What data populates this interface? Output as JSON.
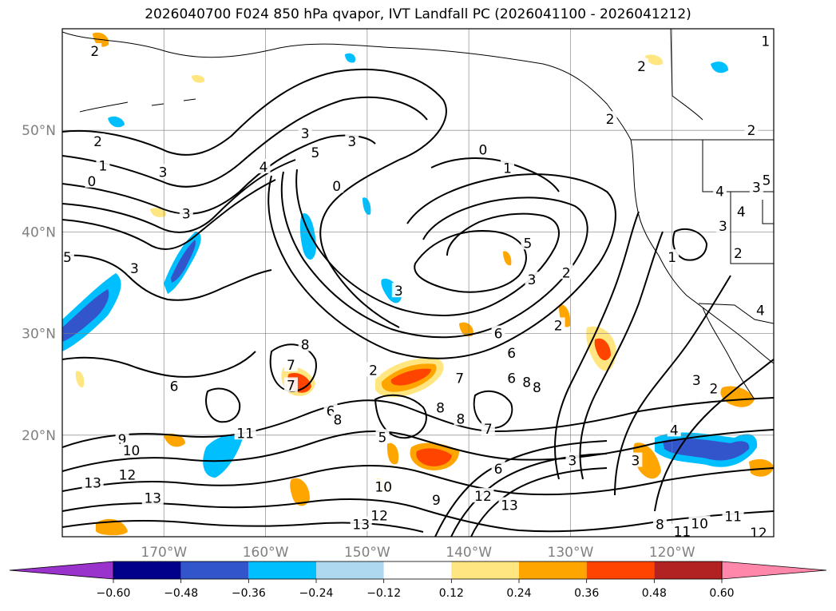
{
  "title": "2026040700 F024 850 hPa qvapor, IVT Landfall PC (2026041100 - 2026041212)",
  "map": {
    "lon_range": [
      -180,
      -110
    ],
    "lat_range": [
      10,
      60
    ],
    "lat_labels": [
      {
        "lat": 20,
        "text": "20°N"
      },
      {
        "lat": 30,
        "text": "30°N"
      },
      {
        "lat": 40,
        "text": "40°N"
      },
      {
        "lat": 50,
        "text": "50°N"
      }
    ],
    "lon_labels": [
      {
        "lon": -170,
        "text": "170°W"
      },
      {
        "lon": -160,
        "text": "160°W"
      },
      {
        "lon": -150,
        "text": "150°W"
      },
      {
        "lon": -140,
        "text": "140°W"
      },
      {
        "lon": -130,
        "text": "130°W"
      },
      {
        "lon": -120,
        "text": "120°W"
      }
    ],
    "grid_lons": [
      -170,
      -160,
      -150,
      -140,
      -130,
      -120
    ],
    "grid_lats": [
      20,
      30,
      40,
      50
    ],
    "contour_labels": [
      {
        "text": "2",
        "lon": -176.8,
        "lat": 57.8
      },
      {
        "text": "2",
        "lon": -176.5,
        "lat": 48.9
      },
      {
        "text": "1",
        "lon": -176.0,
        "lat": 46.5
      },
      {
        "text": "0",
        "lon": -177.1,
        "lat": 45.0
      },
      {
        "text": "3",
        "lon": -170.1,
        "lat": 45.9
      },
      {
        "text": "3",
        "lon": -167.8,
        "lat": 41.8
      },
      {
        "text": "5",
        "lon": -179.5,
        "lat": 37.5
      },
      {
        "text": "3",
        "lon": -172.9,
        "lat": 36.4
      },
      {
        "text": "3",
        "lon": -156.1,
        "lat": 49.7
      },
      {
        "text": "5",
        "lon": -155.1,
        "lat": 47.8
      },
      {
        "text": "4",
        "lon": -160.2,
        "lat": 46.4
      },
      {
        "text": "3",
        "lon": -151.5,
        "lat": 48.9
      },
      {
        "text": "0",
        "lon": -153.0,
        "lat": 44.5
      },
      {
        "text": "0",
        "lon": -138.6,
        "lat": 48.1
      },
      {
        "text": "1",
        "lon": -136.2,
        "lat": 46.3
      },
      {
        "text": "5",
        "lon": -134.2,
        "lat": 38.9
      },
      {
        "text": "3",
        "lon": -133.8,
        "lat": 35.3
      },
      {
        "text": "3",
        "lon": -146.9,
        "lat": 34.2
      },
      {
        "text": "2",
        "lon": -130.4,
        "lat": 36.0
      },
      {
        "text": "6",
        "lon": -137.1,
        "lat": 30.0
      },
      {
        "text": "6",
        "lon": -135.8,
        "lat": 28.1
      },
      {
        "text": "7",
        "lon": -140.9,
        "lat": 25.6
      },
      {
        "text": "6",
        "lon": -135.8,
        "lat": 25.6
      },
      {
        "text": "8",
        "lon": -134.3,
        "lat": 25.2
      },
      {
        "text": "8",
        "lon": -133.3,
        "lat": 24.7
      },
      {
        "text": "2",
        "lon": -131.2,
        "lat": 30.8
      },
      {
        "text": "8",
        "lon": -156.1,
        "lat": 28.9
      },
      {
        "text": "7",
        "lon": -157.5,
        "lat": 26.9
      },
      {
        "text": "7",
        "lon": -157.5,
        "lat": 24.9
      },
      {
        "text": "6",
        "lon": -169.0,
        "lat": 24.8
      },
      {
        "text": "2",
        "lon": -149.4,
        "lat": 26.4
      },
      {
        "text": "6",
        "lon": -153.6,
        "lat": 22.4
      },
      {
        "text": "8",
        "lon": -152.9,
        "lat": 21.5
      },
      {
        "text": "8",
        "lon": -142.8,
        "lat": 22.7
      },
      {
        "text": "8",
        "lon": -140.8,
        "lat": 21.6
      },
      {
        "text": "7",
        "lon": -138.1,
        "lat": 20.6
      },
      {
        "text": "5",
        "lon": -148.5,
        "lat": 19.8
      },
      {
        "text": "6",
        "lon": -137.1,
        "lat": 16.7
      },
      {
        "text": "3",
        "lon": -129.8,
        "lat": 17.5
      },
      {
        "text": "3",
        "lon": -123.6,
        "lat": 17.5
      },
      {
        "text": "4",
        "lon": -119.8,
        "lat": 20.5
      },
      {
        "text": "3",
        "lon": -117.6,
        "lat": 25.4
      },
      {
        "text": "2",
        "lon": -115.9,
        "lat": 24.6
      },
      {
        "text": "9",
        "lon": -174.1,
        "lat": 19.6
      },
      {
        "text": "10",
        "lon": -173.2,
        "lat": 18.5
      },
      {
        "text": "12",
        "lon": -173.6,
        "lat": 16.1
      },
      {
        "text": "13",
        "lon": -177.0,
        "lat": 15.3
      },
      {
        "text": "13",
        "lon": -171.1,
        "lat": 13.8
      },
      {
        "text": "11",
        "lon": -162.0,
        "lat": 20.2
      },
      {
        "text": "10",
        "lon": -148.4,
        "lat": 14.9
      },
      {
        "text": "9",
        "lon": -143.2,
        "lat": 13.6
      },
      {
        "text": "12",
        "lon": -138.6,
        "lat": 14.0
      },
      {
        "text": "13",
        "lon": -136.0,
        "lat": 13.1
      },
      {
        "text": "12",
        "lon": -148.8,
        "lat": 12.1
      },
      {
        "text": "13",
        "lon": -150.6,
        "lat": 11.2
      },
      {
        "text": "8",
        "lon": -121.2,
        "lat": 11.2
      },
      {
        "text": "11",
        "lon": -119.0,
        "lat": 10.5
      },
      {
        "text": "10",
        "lon": -117.3,
        "lat": 11.3
      },
      {
        "text": "11",
        "lon": -114.0,
        "lat": 12.0
      },
      {
        "text": "12",
        "lon": -111.5,
        "lat": 10.4
      },
      {
        "text": "2",
        "lon": -123.0,
        "lat": 56.3
      },
      {
        "text": "2",
        "lon": -126.1,
        "lat": 51.1
      },
      {
        "text": "2",
        "lon": -112.2,
        "lat": 50.0
      },
      {
        "text": "1",
        "lon": -110.8,
        "lat": 58.8
      },
      {
        "text": "4",
        "lon": -115.3,
        "lat": 44.0
      },
      {
        "text": "3",
        "lon": -111.7,
        "lat": 44.4
      },
      {
        "text": "5",
        "lon": -110.7,
        "lat": 45.1
      },
      {
        "text": "4",
        "lon": -113.2,
        "lat": 42.0
      },
      {
        "text": "3",
        "lon": -115.0,
        "lat": 40.6
      },
      {
        "text": "1",
        "lon": -120.0,
        "lat": 37.5
      },
      {
        "text": "2",
        "lon": -113.5,
        "lat": 37.9
      },
      {
        "text": "4",
        "lon": -111.3,
        "lat": 32.3
      }
    ]
  },
  "colorbar": {
    "ticks": [
      "−0.60",
      "−0.48",
      "−0.36",
      "−0.24",
      "−0.12",
      "0.12",
      "0.24",
      "0.36",
      "0.48",
      "0.60"
    ],
    "colors": [
      "#9933cc",
      "#00008b",
      "#3355cc",
      "#00bfff",
      "#add8f0",
      "#ffffff",
      "#ffe680",
      "#ffa500",
      "#ff4400",
      "#b22222",
      "#ff88aa"
    ]
  }
}
